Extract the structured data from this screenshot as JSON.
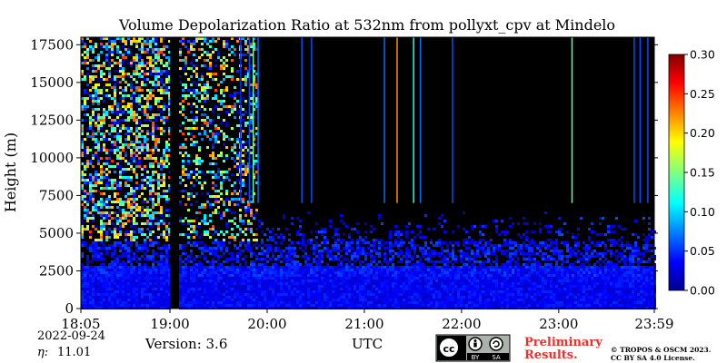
{
  "chart_data": {
    "type": "heatmap",
    "title": "Volume Depolarization Ratio at 532nm from pollyxt_cpv at Mindelo",
    "xlabel": "UTC",
    "ylabel": "Height (m)",
    "x_tick_labels": [
      "18:05",
      "19:00",
      "20:00",
      "21:00",
      "22:00",
      "23:00",
      "23:59"
    ],
    "x_tick_hours": [
      18.0833,
      19.0,
      20.0,
      21.0,
      22.0,
      23.0,
      23.9833
    ],
    "xlim_hours": [
      18.0833,
      23.9833
    ],
    "y_ticks": [
      0,
      2500,
      5000,
      7500,
      10000,
      12500,
      15000,
      17500
    ],
    "y_tick_labels": [
      "0",
      "2500",
      "5000",
      "7500",
      "10000",
      "12500",
      "15000",
      "17500"
    ],
    "ylim": [
      0,
      18000
    ],
    "colorbar": {
      "colormap": "jet",
      "range": [
        0.0,
        0.3
      ],
      "ticks": [
        0.0,
        0.05,
        0.1,
        0.15,
        0.2,
        0.25,
        0.3
      ],
      "tick_labels": [
        "0.00",
        "0.05",
        "0.10",
        "0.15",
        "0.20",
        "0.25",
        "0.30"
      ]
    },
    "background_color": "#000000",
    "data_gap_hours": [
      19.0,
      19.08
    ],
    "noisy_region_end_hour": 19.9,
    "boundary_layer_top_m": 3000,
    "vertical_streaks": [
      {
        "hour": 19.72,
        "value": 0.05
      },
      {
        "hour": 19.81,
        "value": 0.06
      },
      {
        "hour": 19.85,
        "value": 0.14
      },
      {
        "hour": 19.9,
        "value": 0.07
      },
      {
        "hour": 20.35,
        "value": 0.06
      },
      {
        "hour": 20.45,
        "value": 0.06
      },
      {
        "hour": 21.2,
        "value": 0.07
      },
      {
        "hour": 21.33,
        "value": 0.22
      },
      {
        "hour": 21.5,
        "value": 0.12
      },
      {
        "hour": 21.57,
        "value": 0.07
      },
      {
        "hour": 21.9,
        "value": 0.06
      },
      {
        "hour": 23.13,
        "value": 0.14
      },
      {
        "hour": 23.77,
        "value": 0.06
      },
      {
        "hour": 23.83,
        "value": 0.06
      },
      {
        "hour": 23.91,
        "value": 0.06
      }
    ]
  },
  "footer": {
    "date": "2022-09-24",
    "eta_label": "η:",
    "eta_value": "11.01",
    "version": "Version: 3.6",
    "xlabel": "UTC",
    "preliminary_line1": "Preliminary",
    "preliminary_line2": "Results.",
    "copyright_line1": "© TROPOS & OSCM 2023.",
    "copyright_line2": "CC BY SA 4.0 License.",
    "license_badge": {
      "left": "cc",
      "right_icons": "by-sa",
      "by_text": "BY",
      "sa_text": "SA"
    }
  },
  "colors": {
    "plot_background": "#000000",
    "preliminary_text": "#e8322d"
  }
}
